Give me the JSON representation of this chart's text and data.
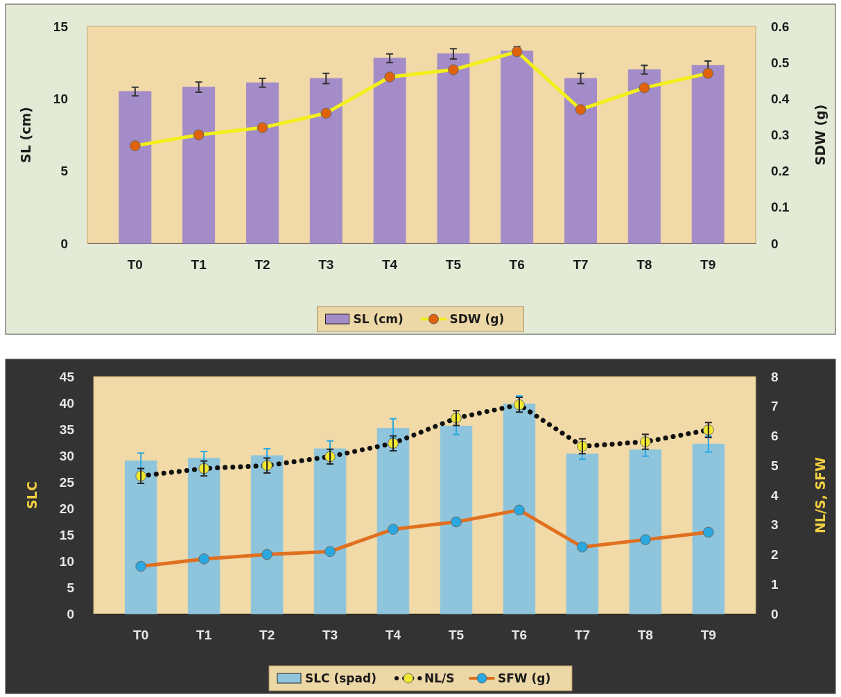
{
  "chart_data": [
    {
      "type": "bar",
      "categories": [
        "T0",
        "T1",
        "T2",
        "T3",
        "T4",
        "T5",
        "T6",
        "T7",
        "T8",
        "T9"
      ],
      "ylabel": "SL (cm)",
      "y2label": "SDW (g)",
      "ylim": [
        0,
        15
      ],
      "yticks": [
        0,
        5,
        10,
        15
      ],
      "y2lim": [
        0,
        0.6
      ],
      "y2ticks": [
        0,
        0.1,
        0.2,
        0.3,
        0.4,
        0.5,
        0.6
      ],
      "legend": "bottom",
      "series": [
        {
          "name": "SL (cm)",
          "color": "#a48cc8",
          "values": [
            10.5,
            10.8,
            11.1,
            11.4,
            12.8,
            13.1,
            13.3,
            11.4,
            12.0,
            12.3
          ],
          "errors": [
            0.3,
            0.35,
            0.3,
            0.35,
            0.3,
            0.35,
            0.3,
            0.35,
            0.3,
            0.3
          ]
        },
        {
          "name": "SDW (g)",
          "type": "line",
          "axis": "y2",
          "color": "#f2ef1a",
          "marker": "circle",
          "line_style": "solid",
          "values": [
            0.27,
            0.3,
            0.32,
            0.36,
            0.46,
            0.48,
            0.53,
            0.37,
            0.43,
            0.47
          ]
        }
      ]
    },
    {
      "type": "bar",
      "categories": [
        "T0",
        "T1",
        "T2",
        "T3",
        "T4",
        "T5",
        "T6",
        "T7",
        "T8",
        "T9"
      ],
      "ylabel": "SLC",
      "y2label": "NL/S, SFW",
      "ylim": [
        0,
        45
      ],
      "yticks": [
        0,
        5,
        10,
        15,
        20,
        25,
        30,
        35,
        40,
        45
      ],
      "y2lim": [
        0,
        8
      ],
      "y2ticks": [
        0,
        1,
        2,
        3,
        4,
        5,
        6,
        7,
        8
      ],
      "legend": "bottom",
      "series": [
        {
          "name": "SLC (spad)",
          "color": "#8ec5dc",
          "values": [
            29,
            29.5,
            30,
            31.3,
            35.2,
            35.6,
            39.8,
            30.3,
            31.1,
            32.2
          ],
          "errors": [
            1.5,
            1.3,
            1.3,
            1.5,
            1.8,
            1.6,
            1.5,
            1.0,
            1.2,
            1.5
          ]
        },
        {
          "name": "NL/S",
          "type": "line",
          "axis": "y2",
          "color": "#f0e830",
          "marker": "circle",
          "line_style": "dotted",
          "values": [
            4.65,
            4.9,
            5.0,
            5.3,
            5.75,
            6.6,
            7.05,
            5.65,
            5.8,
            6.2
          ],
          "errors": [
            0.25,
            0.25,
            0.25,
            0.25,
            0.25,
            0.25,
            0.25,
            0.25,
            0.25,
            0.25
          ]
        },
        {
          "name": "SFW (g)",
          "type": "line",
          "axis": "y2",
          "color": "#e07020",
          "marker": "circle",
          "line_style": "solid",
          "values": [
            1.6,
            1.85,
            2.0,
            2.1,
            2.85,
            3.1,
            3.5,
            2.25,
            2.5,
            2.75
          ]
        }
      ]
    }
  ]
}
